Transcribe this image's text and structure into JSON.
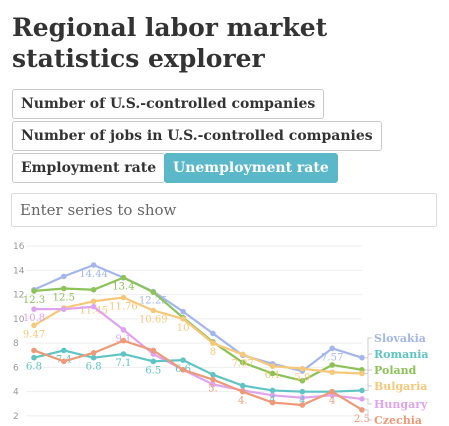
{
  "page": {
    "title": "Regional labor market statistics explorer",
    "buttons": [
      {
        "label": "Number of U.S.-controlled companies",
        "active": false
      },
      {
        "label": "Number of jobs in U.S.-controlled companies",
        "active": false
      },
      {
        "label": "Employment rate",
        "active": false
      },
      {
        "label": "Unemployment rate",
        "active": true
      }
    ],
    "search": {
      "placeholder": "Enter series to show",
      "value": ""
    }
  },
  "chart_data": {
    "type": "line",
    "title": "",
    "xlabel": "",
    "ylabel": "",
    "ylim": [
      1.5,
      16.5
    ],
    "yticks": [
      2,
      4,
      6,
      8,
      10,
      12,
      14,
      16
    ],
    "grid": true,
    "x": [
      0,
      1,
      2,
      3,
      4,
      5,
      6,
      7,
      8,
      9,
      10,
      11
    ],
    "series": [
      {
        "name": "Slovakia",
        "color": "#a4b6ec",
        "values": [
          12.4,
          13.5,
          14.44,
          13.4,
          12.25,
          10.6,
          8.8,
          7.0,
          6.3,
          5.7,
          7.57,
          6.8
        ],
        "labels": [
          "",
          "",
          "14.44",
          "",
          "12.25",
          "",
          "",
          "",
          "",
          "",
          "7.57",
          ""
        ]
      },
      {
        "name": "Poland",
        "color": "#8cc257",
        "values": [
          12.3,
          12.5,
          12.4,
          13.4,
          12.2,
          10.1,
          8.1,
          6.4,
          5.5,
          4.9,
          6.2,
          5.8
        ],
        "labels": [
          "12.3",
          "12.5",
          "",
          "13.4",
          "",
          "",
          "",
          "",
          "",
          "",
          "",
          ""
        ]
      },
      {
        "name": "Bulgaria",
        "color": "#f7c87a",
        "values": [
          9.47,
          10.9,
          11.45,
          11.76,
          10.69,
          10.0,
          8.0,
          7.07,
          6.1,
          5.9,
          5.6,
          5.5
        ],
        "labels": [
          "9.47",
          "",
          "11.45",
          "11.76",
          "10.69",
          "10",
          "8",
          "7.07",
          "6.1",
          "5.9",
          "",
          ""
        ]
      },
      {
        "name": "Hungary",
        "color": "#e0a4ee",
        "values": [
          10.8,
          10.8,
          11.0,
          9.1,
          7.1,
          5.8,
          4.6,
          4.1,
          3.7,
          3.5,
          3.7,
          3.4
        ],
        "labels": [
          "10.8",
          "",
          "",
          "9.1",
          "",
          "",
          "",
          "",
          "",
          "",
          "",
          ""
        ]
      },
      {
        "name": "Romania",
        "color": "#5fc4c4",
        "values": [
          6.8,
          7.4,
          6.8,
          7.1,
          6.5,
          6.6,
          5.4,
          4.5,
          4.1,
          4.0,
          4.0,
          4.1
        ],
        "labels": [
          "6.8",
          "7.4",
          "6.8",
          "7.1",
          "6.5",
          "6.6",
          "",
          "",
          "4",
          "4",
          "",
          ""
        ]
      },
      {
        "name": "Czechia",
        "color": "#ee9a78",
        "values": [
          7.4,
          6.5,
          7.2,
          8.2,
          7.4,
          5.8,
          5.0,
          4.0,
          3.1,
          2.9,
          4.0,
          2.5
        ],
        "labels": [
          "",
          "",
          "",
          "",
          "",
          "",
          "5.",
          "4.",
          "",
          "",
          "4",
          "2.5"
        ]
      }
    ]
  }
}
